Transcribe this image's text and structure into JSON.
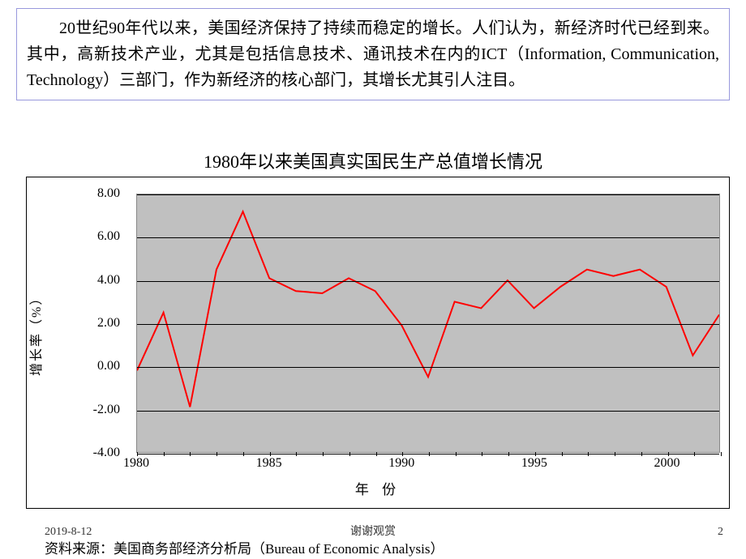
{
  "textbox": {
    "paragraph": "20世纪90年代以来，美国经济保持了持续而稳定的增长。人们认为，新经济时代已经到来。其中，高新技术产业，尤其是包括信息技术、通讯技术在内的ICT（Information, Communication, Technology）三部门，作为新经济的核心部门，其增长尤其引人注目。"
  },
  "chart": {
    "type": "line",
    "title": "1980年以来美国真实国民生产总值增长情况",
    "yaxis_title": "增长率（%）",
    "xaxis_title": "年 份",
    "plot_bgcolor": "#c0c0c0",
    "line_color": "#ff0000",
    "line_width": 2,
    "grid_color": "#000000",
    "ylim": [
      -4.0,
      8.0
    ],
    "yticks": [
      -4.0,
      -2.0,
      0.0,
      2.0,
      4.0,
      6.0,
      8.0
    ],
    "ytick_labels": [
      "-4.00",
      "-2.00",
      "0.00",
      "2.00",
      "4.00",
      "6.00",
      "8.00"
    ],
    "xtick_years": [
      1980,
      1985,
      1990,
      1995,
      2000
    ],
    "x_range": [
      1980,
      2002
    ],
    "years": [
      1980,
      1981,
      1982,
      1983,
      1984,
      1985,
      1986,
      1987,
      1988,
      1989,
      1990,
      1991,
      1992,
      1993,
      1994,
      1995,
      1996,
      1997,
      1998,
      1999,
      2000,
      2001,
      2002
    ],
    "values": [
      -0.2,
      2.5,
      -1.9,
      4.5,
      7.2,
      4.1,
      3.5,
      3.4,
      4.1,
      3.5,
      1.9,
      -0.5,
      3.0,
      2.7,
      4.0,
      2.7,
      3.7,
      4.5,
      4.2,
      4.5,
      3.7,
      0.5,
      2.4
    ],
    "tick_fontsize": 16,
    "title_fontsize": 22
  },
  "footer": {
    "date": "2019-8-12",
    "thanks": "谢谢观赏",
    "page": "2",
    "source": "资料来源：美国商务部经济分析局（Bureau of Economic Analysis）"
  }
}
